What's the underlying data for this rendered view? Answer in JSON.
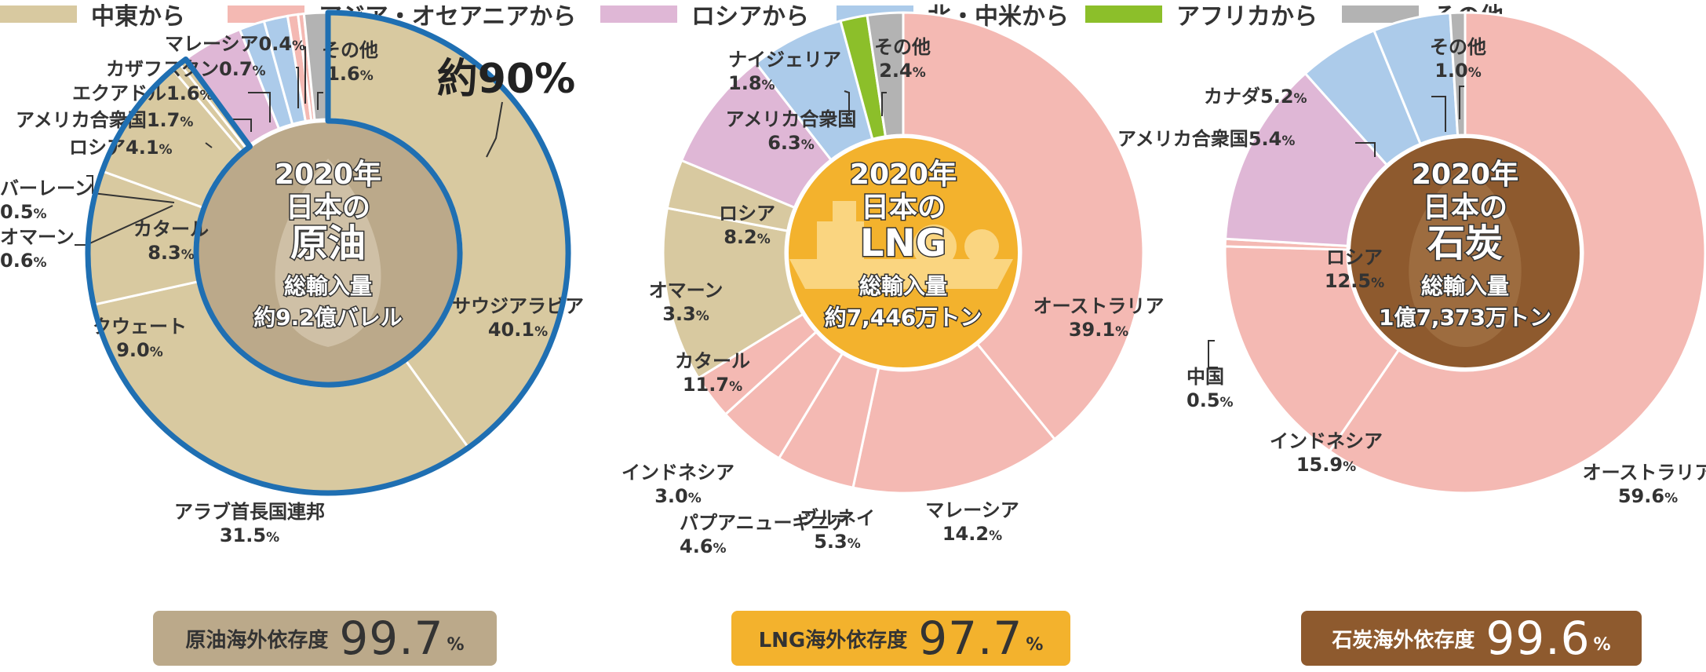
{
  "legend": [
    {
      "label": "中東から",
      "color": "#d8c9a0"
    },
    {
      "label": "アジア・オセアニアから",
      "color": "#f4b9b3"
    },
    {
      "label": "ロシアから",
      "color": "#dfb7d6"
    },
    {
      "label": "北・中米から",
      "color": "#accbea"
    },
    {
      "label": "アフリカから",
      "color": "#8cbf2a"
    },
    {
      "label": "その他",
      "color": "#b3b3b3"
    }
  ],
  "chart_data": [
    {
      "type": "pie",
      "center": {
        "line1": "2020年",
        "line2": "日本の",
        "line3": "原油",
        "line4": "総輸入量",
        "line5": "約9.2億バレル"
      },
      "annotation": "約90%",
      "slices": [
        {
          "name": "サウジアラビア",
          "value": 40.1,
          "region": "中東から"
        },
        {
          "name": "アラブ首長国連邦",
          "value": 31.5,
          "region": "中東から"
        },
        {
          "name": "クウェート",
          "value": 9.0,
          "region": "中東から"
        },
        {
          "name": "カタール",
          "value": 8.3,
          "region": "中東から"
        },
        {
          "name": "オマーン",
          "value": 0.6,
          "region": "中東から"
        },
        {
          "name": "バーレーン",
          "value": 0.5,
          "region": "中東から"
        },
        {
          "name": "ロシア",
          "value": 4.1,
          "region": "ロシアから"
        },
        {
          "name": "アメリカ合衆国",
          "value": 1.7,
          "region": "北・中米から"
        },
        {
          "name": "エクアドル",
          "value": 1.6,
          "region": "北・中米から"
        },
        {
          "name": "カザフスタン",
          "value": 0.7,
          "region": "アジア・オセアニアから"
        },
        {
          "name": "マレーシア",
          "value": 0.4,
          "region": "アジア・オセアニアから"
        },
        {
          "name": "その他",
          "value": 1.6,
          "region": "その他"
        }
      ],
      "pill": {
        "label": "原油海外依存度",
        "value": "99.7",
        "unit": "%"
      }
    },
    {
      "type": "pie",
      "center": {
        "line1": "2020年",
        "line2": "日本の",
        "line3": "LNG",
        "line4": "総輸入量",
        "line5": "約7,446万トン"
      },
      "slices": [
        {
          "name": "オーストラリア",
          "value": 39.1,
          "region": "アジア・オセアニアから"
        },
        {
          "name": "マレーシア",
          "value": 14.2,
          "region": "アジア・オセアニアから"
        },
        {
          "name": "ブルネイ",
          "value": 5.3,
          "region": "アジア・オセアニアから"
        },
        {
          "name": "パプアニューギニア",
          "value": 4.6,
          "region": "アジア・オセアニアから"
        },
        {
          "name": "インドネシア",
          "value": 3.0,
          "region": "アジア・オセアニアから"
        },
        {
          "name": "カタール",
          "value": 11.7,
          "region": "中東から"
        },
        {
          "name": "オマーン",
          "value": 3.3,
          "region": "中東から"
        },
        {
          "name": "ロシア",
          "value": 8.2,
          "region": "ロシアから"
        },
        {
          "name": "アメリカ合衆国",
          "value": 6.3,
          "region": "北・中米から"
        },
        {
          "name": "ナイジェリア",
          "value": 1.8,
          "region": "アフリカから"
        },
        {
          "name": "その他",
          "value": 2.4,
          "region": "その他"
        }
      ],
      "pill": {
        "label": "LNG海外依存度",
        "value": "97.7",
        "unit": "%"
      }
    },
    {
      "type": "pie",
      "center": {
        "line1": "2020年",
        "line2": "日本の",
        "line3": "石炭",
        "line4": "総輸入量",
        "line5": "1億7,373万トン"
      },
      "slices": [
        {
          "name": "オーストラリア",
          "value": 59.6,
          "region": "アジア・オセアニアから"
        },
        {
          "name": "インドネシア",
          "value": 15.9,
          "region": "アジア・オセアニアから"
        },
        {
          "name": "中国",
          "value": 0.5,
          "region": "アジア・オセアニアから"
        },
        {
          "name": "ロシア",
          "value": 12.5,
          "region": "ロシアから"
        },
        {
          "name": "アメリカ合衆国",
          "value": 5.4,
          "region": "北・中米から"
        },
        {
          "name": "カナダ",
          "value": 5.2,
          "region": "北・中米から"
        },
        {
          "name": "その他",
          "value": 1.0,
          "region": "その他"
        }
      ],
      "pill": {
        "label": "石炭海外依存度",
        "value": "99.6",
        "unit": "%"
      }
    }
  ],
  "theme": {
    "highlight": "#1f6fb2",
    "center_oil": "#bba98a",
    "center_lng": "#f3b22d",
    "center_coal": "#8e5a2e",
    "pill_oil": "#bba98a",
    "pill_lng": "#f3b22d",
    "pill_coal": "#8e5a2e"
  }
}
